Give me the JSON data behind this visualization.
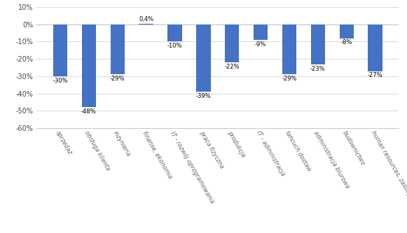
{
  "categories": [
    "sprzedaż",
    "obsługa klienta",
    "inżynieria",
    "finanse, ekonomia",
    "IT - rozwój oprogramowania",
    "praca fizyczna",
    "produkcja",
    "IT - administracja",
    "łańcuch dostaw",
    "administracja biurowa",
    "budownictwo",
    "human resources, zasoby ludzkie"
  ],
  "values": [
    -30,
    -48,
    -29,
    0.4,
    -10,
    -39,
    -22,
    -9,
    -29,
    -23,
    -8,
    -27
  ],
  "labels": [
    "-30%",
    "-48%",
    "-29%",
    "0,4%",
    "-10%",
    "-39%",
    "-22%",
    "-9%",
    "-29%",
    "-23%",
    "-8%",
    "-27%"
  ],
  "bar_color": "#4472C4",
  "ylim_min": -60,
  "ylim_max": 10,
  "yticks": [
    10,
    0,
    -10,
    -20,
    -30,
    -40,
    -50,
    -60
  ],
  "background_color": "#ffffff",
  "grid_color": "#d3d3d3"
}
